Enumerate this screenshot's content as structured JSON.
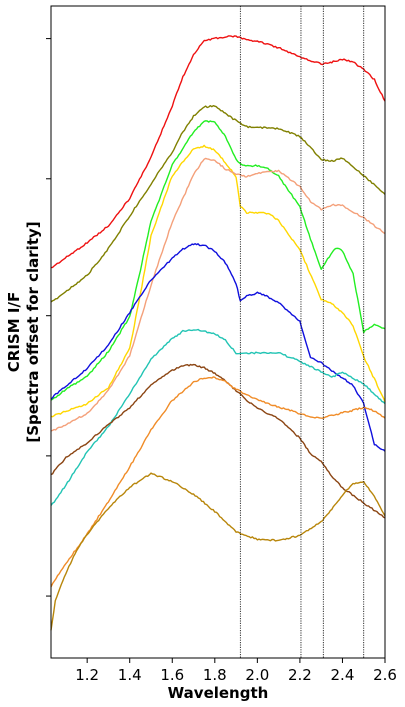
{
  "chart_data": {
    "type": "line",
    "title": "",
    "xlabel": "Wavelength",
    "ylabel": "CRISM I/F",
    "ylabel_line2": "[Spectra offset for clarity]",
    "xlim": [
      1.03,
      2.6
    ],
    "ylim": [
      0,
      1
    ],
    "x_ticks": [
      1.2,
      1.4,
      1.6,
      1.8,
      2.0,
      2.2,
      2.4,
      2.6
    ],
    "x_tick_labels": [
      "1.2",
      "1.4",
      "1.6",
      "1.8",
      "2.0",
      "2.2",
      "2.4",
      "2.6"
    ],
    "y_tick_values": [
      0.95,
      0.735,
      0.525,
      0.31,
      0.095
    ],
    "y_tick_labels_shown": false,
    "reference_lines_x": [
      1.92,
      2.205,
      2.31,
      2.5
    ],
    "grid": false,
    "legend": "none",
    "series": [
      {
        "color": "#ee1111",
        "x": [
          1.03,
          1.2,
          1.3,
          1.4,
          1.5,
          1.6,
          1.65,
          1.7,
          1.75,
          1.8,
          1.85,
          1.9,
          1.95,
          2.0,
          2.1,
          2.2,
          2.3,
          2.35,
          2.4,
          2.45,
          2.5,
          2.55,
          2.6
        ],
        "y": [
          0.598,
          0.637,
          0.663,
          0.705,
          0.768,
          0.847,
          0.891,
          0.926,
          0.946,
          0.95,
          0.953,
          0.954,
          0.948,
          0.946,
          0.936,
          0.922,
          0.911,
          0.914,
          0.918,
          0.914,
          0.903,
          0.887,
          0.854
        ]
      },
      {
        "color": "#808000",
        "x": [
          1.03,
          1.2,
          1.3,
          1.4,
          1.5,
          1.6,
          1.65,
          1.7,
          1.75,
          1.8,
          1.85,
          1.9,
          1.95,
          2.0,
          2.1,
          2.2,
          2.3,
          2.35,
          2.4,
          2.5,
          2.6
        ],
        "y": [
          0.545,
          0.587,
          0.628,
          0.678,
          0.727,
          0.776,
          0.807,
          0.831,
          0.845,
          0.847,
          0.835,
          0.824,
          0.815,
          0.814,
          0.812,
          0.8,
          0.765,
          0.762,
          0.767,
          0.74,
          0.711
        ]
      },
      {
        "color": "#22ee22",
        "x": [
          1.03,
          1.1,
          1.2,
          1.3,
          1.4,
          1.45,
          1.5,
          1.6,
          1.7,
          1.75,
          1.8,
          1.85,
          1.9,
          1.93,
          2.0,
          2.05,
          2.1,
          2.2,
          2.25,
          2.3,
          2.33,
          2.37,
          2.4,
          2.45,
          2.5,
          2.55,
          2.6
        ],
        "y": [
          0.395,
          0.412,
          0.432,
          0.47,
          0.523,
          0.595,
          0.67,
          0.756,
          0.807,
          0.823,
          0.822,
          0.8,
          0.764,
          0.755,
          0.755,
          0.75,
          0.739,
          0.692,
          0.642,
          0.597,
          0.612,
          0.629,
          0.624,
          0.589,
          0.5,
          0.512,
          0.505
        ]
      },
      {
        "color": "#ffd700",
        "x": [
          1.03,
          1.2,
          1.3,
          1.4,
          1.45,
          1.5,
          1.6,
          1.7,
          1.75,
          1.8,
          1.85,
          1.9,
          1.92,
          1.95,
          2.0,
          2.05,
          2.1,
          2.2,
          2.3,
          2.35,
          2.4,
          2.45,
          2.5,
          2.55,
          2.6
        ],
        "y": [
          0.37,
          0.39,
          0.415,
          0.475,
          0.558,
          0.647,
          0.74,
          0.781,
          0.785,
          0.779,
          0.76,
          0.738,
          0.693,
          0.683,
          0.683,
          0.682,
          0.671,
          0.626,
          0.55,
          0.543,
          0.53,
          0.51,
          0.462,
          0.428,
          0.393
        ]
      },
      {
        "color": "#f4a07a",
        "x": [
          1.03,
          1.2,
          1.3,
          1.4,
          1.5,
          1.6,
          1.7,
          1.75,
          1.8,
          1.85,
          1.9,
          1.95,
          2.0,
          2.1,
          2.2,
          2.25,
          2.3,
          2.35,
          2.4,
          2.5,
          2.6
        ],
        "y": [
          0.347,
          0.375,
          0.41,
          0.464,
          0.572,
          0.669,
          0.741,
          0.766,
          0.763,
          0.75,
          0.742,
          0.738,
          0.744,
          0.747,
          0.723,
          0.7,
          0.688,
          0.695,
          0.694,
          0.675,
          0.651
        ]
      },
      {
        "color": "#1010dd",
        "x": [
          1.03,
          1.1,
          1.2,
          1.3,
          1.4,
          1.5,
          1.6,
          1.65,
          1.7,
          1.75,
          1.8,
          1.85,
          1.9,
          1.92,
          1.95,
          2.0,
          2.05,
          2.1,
          2.2,
          2.25,
          2.3,
          2.35,
          2.4,
          2.45,
          2.5,
          2.55,
          2.6
        ],
        "y": [
          0.398,
          0.417,
          0.444,
          0.48,
          0.53,
          0.58,
          0.613,
          0.627,
          0.635,
          0.633,
          0.624,
          0.606,
          0.574,
          0.548,
          0.555,
          0.56,
          0.554,
          0.545,
          0.516,
          0.461,
          0.453,
          0.44,
          0.43,
          0.418,
          0.39,
          0.328,
          0.317
        ]
      },
      {
        "color": "#22c4b4",
        "x": [
          1.03,
          1.1,
          1.2,
          1.3,
          1.4,
          1.5,
          1.6,
          1.65,
          1.7,
          1.75,
          1.8,
          1.85,
          1.9,
          1.95,
          2.0,
          2.1,
          2.2,
          2.3,
          2.35,
          2.4,
          2.5,
          2.55,
          2.6
        ],
        "y": [
          0.233,
          0.265,
          0.316,
          0.355,
          0.405,
          0.458,
          0.49,
          0.501,
          0.504,
          0.501,
          0.497,
          0.487,
          0.468,
          0.468,
          0.468,
          0.468,
          0.455,
          0.439,
          0.431,
          0.438,
          0.42,
          0.405,
          0.39
        ]
      },
      {
        "color": "#8b4513",
        "x": [
          1.03,
          1.1,
          1.2,
          1.3,
          1.4,
          1.5,
          1.6,
          1.65,
          1.7,
          1.75,
          1.8,
          1.85,
          1.9,
          1.95,
          2.0,
          2.1,
          2.2,
          2.25,
          2.3,
          2.35,
          2.4,
          2.5,
          2.6
        ],
        "y": [
          0.281,
          0.307,
          0.33,
          0.358,
          0.384,
          0.419,
          0.441,
          0.448,
          0.45,
          0.445,
          0.437,
          0.425,
          0.41,
          0.395,
          0.383,
          0.367,
          0.337,
          0.313,
          0.301,
          0.279,
          0.261,
          0.238,
          0.215
        ]
      },
      {
        "color": "#f08c28",
        "x": [
          1.03,
          1.1,
          1.2,
          1.3,
          1.4,
          1.5,
          1.6,
          1.7,
          1.75,
          1.8,
          1.85,
          1.9,
          2.0,
          2.1,
          2.2,
          2.25,
          2.3,
          2.35,
          2.4,
          2.45,
          2.5,
          2.55,
          2.6
        ],
        "y": [
          0.11,
          0.145,
          0.19,
          0.24,
          0.293,
          0.35,
          0.395,
          0.423,
          0.43,
          0.43,
          0.424,
          0.412,
          0.396,
          0.385,
          0.375,
          0.37,
          0.368,
          0.372,
          0.376,
          0.38,
          0.384,
          0.379,
          0.368
        ]
      },
      {
        "color": "#b8860b",
        "x": [
          1.03,
          1.05,
          1.1,
          1.15,
          1.2,
          1.3,
          1.4,
          1.5,
          1.6,
          1.7,
          1.8,
          1.9,
          2.0,
          2.1,
          2.2,
          2.3,
          2.35,
          2.4,
          2.45,
          2.5,
          2.55,
          2.6
        ],
        "y": [
          0.043,
          0.087,
          0.13,
          0.165,
          0.19,
          0.23,
          0.262,
          0.283,
          0.271,
          0.251,
          0.225,
          0.193,
          0.182,
          0.18,
          0.188,
          0.209,
          0.228,
          0.25,
          0.267,
          0.271,
          0.248,
          0.218
        ]
      }
    ]
  }
}
